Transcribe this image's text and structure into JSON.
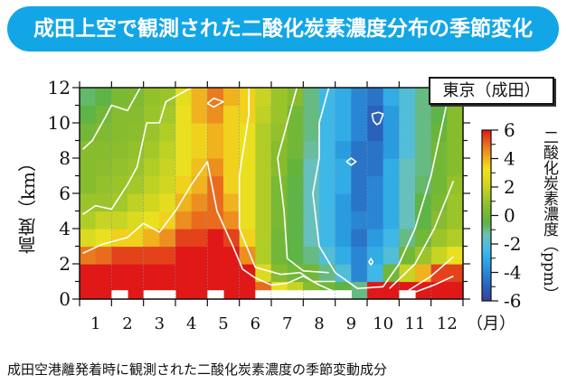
{
  "header": {
    "title": "成田上空で観測された二酸化炭素濃度分布の季節変化"
  },
  "caption": "成田空港離発着時に観測された二酸化炭素濃度の季節変動成分",
  "station_label": "東京（成田）",
  "chart_data": {
    "type": "heatmap",
    "title": "成田上空で観測された二酸化炭素濃度分布の季節変化",
    "xlabel": "（月）",
    "ylabel": "高度（km）",
    "colorbar_label": "二酸化炭素濃度（ppm）",
    "x_tick_labels": [
      "1",
      "2",
      "3",
      "4",
      "5",
      "6",
      "7",
      "8",
      "9",
      "10",
      "11",
      "12"
    ],
    "y_tick_labels": [
      "0",
      "2",
      "4",
      "6",
      "8",
      "10",
      "12"
    ],
    "colorbar_tick_labels": [
      "6",
      "4",
      "2",
      "0",
      "-2",
      "-4",
      "-6"
    ],
    "xlim": [
      0.5,
      12.5
    ],
    "ylim": [
      0,
      12
    ],
    "clim": [
      -6,
      6
    ],
    "colormap": [
      "#3b3f99",
      "#2a5fb8",
      "#2a80d2",
      "#2aa6e4",
      "#44bce8",
      "#6cc0b4",
      "#5db33f",
      "#86bb2e",
      "#aacb28",
      "#d6d820",
      "#f0e21e",
      "#f0a81e",
      "#e8661e",
      "#e01818"
    ],
    "columns": "half-month bins, January through December",
    "rows_km": [
      [
        0,
        1
      ],
      [
        1,
        2
      ],
      [
        2,
        3
      ],
      [
        3,
        4
      ],
      [
        4,
        5
      ],
      [
        5,
        6
      ],
      [
        6,
        7
      ],
      [
        7,
        8
      ],
      [
        8,
        9
      ],
      [
        9,
        10
      ],
      [
        10,
        11
      ],
      [
        11,
        12
      ]
    ],
    "values": [
      [
        6,
        6,
        4.8,
        2.5,
        1.5,
        1,
        0.5,
        0.5,
        0.5,
        0,
        -0.5,
        -0.8
      ],
      [
        6,
        6,
        5,
        3,
        2,
        1,
        0.8,
        0.6,
        0.5,
        0.3,
        0,
        -0.5
      ],
      [
        6,
        6,
        5.5,
        3.5,
        2,
        1.2,
        1,
        0.8,
        0.6,
        0.5,
        0.5,
        0.2
      ],
      [
        6,
        6,
        5.5,
        3.5,
        2.5,
        1.8,
        1.2,
        1,
        0.8,
        0.6,
        0.5,
        0.3
      ],
      [
        6,
        6,
        5.5,
        4,
        3,
        2.2,
        1.8,
        1.5,
        1.2,
        1,
        1,
        0.8
      ],
      [
        6,
        6,
        5.5,
        4.5,
        3.5,
        2.8,
        2.2,
        2,
        1.8,
        1.5,
        1.2,
        1
      ],
      [
        6,
        6,
        6,
        5.5,
        4.5,
        4,
        3.5,
        3,
        3,
        3,
        3,
        2.8
      ],
      [
        6,
        6,
        6,
        5.5,
        5,
        4.5,
        4,
        3.8,
        3.5,
        3.5,
        4,
        4
      ],
      [
        6,
        6,
        6,
        6,
        5,
        5,
        5,
        4.5,
        4,
        4,
        4.5,
        4.8
      ],
      [
        6,
        6,
        6,
        5.5,
        4.5,
        4,
        3.5,
        3.5,
        3.5,
        3.5,
        3.5,
        4
      ],
      [
        6,
        6,
        4.5,
        3.5,
        3,
        3,
        3,
        3,
        3,
        3,
        3.5,
        3.5
      ],
      [
        5,
        2.5,
        1.5,
        1.5,
        1.5,
        1.5,
        1.5,
        1.5,
        1.5,
        1.5,
        1.8,
        2
      ],
      [
        3,
        0.5,
        0,
        0,
        0.2,
        0.2,
        0.2,
        0.5,
        0.5,
        0.8,
        1,
        1
      ],
      [
        2,
        0,
        -0.5,
        -0.5,
        -0.5,
        -0.5,
        -0.5,
        -0.3,
        0,
        0,
        0,
        0.5
      ],
      [
        0.5,
        0,
        -1,
        -1.5,
        -1.5,
        -1.5,
        -1.5,
        -1.5,
        -1.2,
        -1,
        -1,
        -1
      ],
      [
        0,
        -1,
        -2,
        -2.5,
        -2.5,
        -2.5,
        -2.5,
        -2.5,
        -2.5,
        -2.5,
        -2.5,
        -2.5
      ],
      [
        -0.5,
        -2,
        -3,
        -3.5,
        -3.5,
        -3.5,
        -3,
        -3,
        -3.5,
        -3,
        -3,
        -3
      ],
      [
        -1,
        -4,
        -4,
        -4.5,
        -4,
        -4.5,
        -4.5,
        -4.5,
        -4.5,
        -4,
        -4,
        -4
      ],
      [
        6,
        -2.5,
        -3,
        -3.5,
        -4,
        -4,
        -4,
        -4.5,
        -4.5,
        -5,
        -5,
        -4.5
      ],
      [
        6,
        0,
        -2,
        -2.5,
        -3,
        -3,
        -3,
        -3,
        -3.5,
        -3.5,
        -3.5,
        -3
      ],
      [
        6,
        2,
        0,
        -1,
        -1.5,
        -1.5,
        -1.5,
        -1.5,
        -2,
        -2,
        -2,
        -2
      ],
      [
        6,
        4,
        1,
        0,
        -0.5,
        -0.5,
        -0.8,
        -1,
        -1,
        -1,
        -1,
        -1
      ],
      [
        6,
        5.5,
        2,
        1,
        0.5,
        0.2,
        0,
        0,
        0,
        -0.2,
        -0.5,
        -0.5
      ],
      [
        6,
        5.5,
        3,
        1.5,
        1,
        1,
        0.8,
        0.5,
        0.5,
        0.5,
        0.5,
        0.5
      ]
    ],
    "missing_surface_columns": [
      2,
      4,
      5,
      8,
      11,
      12,
      13,
      14,
      15,
      16,
      20
    ],
    "contours": [
      [
        [
          0.6,
          8.5
        ],
        [
          0.9,
          9
        ],
        [
          1.3,
          10.3
        ],
        [
          1.5,
          11
        ],
        [
          2.0,
          10.7
        ],
        [
          2.4,
          12
        ]
      ],
      [
        [
          0.6,
          4.8
        ],
        [
          1.0,
          5.3
        ],
        [
          1.5,
          5.1
        ],
        [
          2.0,
          6.5
        ],
        [
          2.3,
          7.5
        ],
        [
          2.6,
          10
        ],
        [
          3.0,
          10
        ],
        [
          3.2,
          11.2
        ],
        [
          4.0,
          12
        ]
      ],
      [
        [
          0.6,
          2.6
        ],
        [
          1.2,
          3.1
        ],
        [
          2.0,
          3.5
        ],
        [
          2.5,
          4.3
        ],
        [
          3.0,
          3.8
        ],
        [
          3.5,
          5
        ],
        [
          4.0,
          6.5
        ],
        [
          4.5,
          7.8
        ],
        [
          4.8,
          5
        ],
        [
          5.3,
          3
        ],
        [
          5.6,
          1.7
        ],
        [
          6.0,
          1.2
        ],
        [
          6.5,
          0.8
        ],
        [
          7.0,
          0.9
        ],
        [
          7.5,
          1.3
        ],
        [
          8.0,
          0.8
        ],
        [
          8.5,
          0.4
        ]
      ],
      [
        [
          5.8,
          12
        ],
        [
          5.8,
          10.5
        ],
        [
          5.5,
          7
        ],
        [
          5.5,
          4
        ],
        [
          6.0,
          1.8
        ],
        [
          6.8,
          1.4
        ],
        [
          7.4,
          1.5
        ],
        [
          7.8,
          1
        ],
        [
          8.5,
          1
        ]
      ],
      [
        [
          7.3,
          12
        ],
        [
          7.0,
          10
        ],
        [
          6.7,
          8
        ],
        [
          6.9,
          5
        ],
        [
          7.0,
          2.3
        ],
        [
          7.5,
          1.6
        ],
        [
          8.3,
          1.5
        ]
      ],
      [
        [
          8.3,
          12
        ],
        [
          8.0,
          10
        ],
        [
          8.0,
          8
        ],
        [
          7.8,
          6
        ],
        [
          8.0,
          3
        ],
        [
          8.5,
          1.5
        ],
        [
          9.2,
          0.6
        ],
        [
          10.0,
          0.7
        ],
        [
          10.5,
          2
        ],
        [
          11.0,
          4
        ],
        [
          11.5,
          7
        ],
        [
          12.1,
          12
        ]
      ],
      [
        [
          10.2,
          0.6
        ],
        [
          11.0,
          2
        ],
        [
          11.6,
          4
        ],
        [
          12.2,
          6.7
        ]
      ],
      [
        [
          10.8,
          0.5
        ],
        [
          11.5,
          1.3
        ],
        [
          12.2,
          2.4
        ]
      ],
      [
        [
          11.0,
          0.4
        ],
        [
          11.6,
          0.8
        ],
        [
          12.2,
          1.3
        ]
      ],
      [
        [
          4.5,
          11.1
        ],
        [
          4.7,
          11.4
        ],
        [
          5.0,
          11.2
        ],
        [
          4.7,
          10.9
        ],
        [
          4.5,
          11.1
        ]
      ],
      [
        [
          9.65,
          10.5
        ],
        [
          9.85,
          10.6
        ],
        [
          10.0,
          10.5
        ],
        [
          9.9,
          10.0
        ],
        [
          9.8,
          9.9
        ],
        [
          9.7,
          10.1
        ],
        [
          9.65,
          10.5
        ]
      ],
      [
        [
          8.85,
          7.8
        ],
        [
          9.0,
          8.0
        ],
        [
          9.15,
          7.8
        ],
        [
          9.0,
          7.6
        ],
        [
          8.85,
          7.8
        ]
      ],
      [
        [
          9.55,
          2.1
        ],
        [
          9.62,
          2.3
        ],
        [
          9.68,
          2.1
        ],
        [
          9.62,
          1.95
        ],
        [
          9.55,
          2.1
        ]
      ]
    ]
  }
}
